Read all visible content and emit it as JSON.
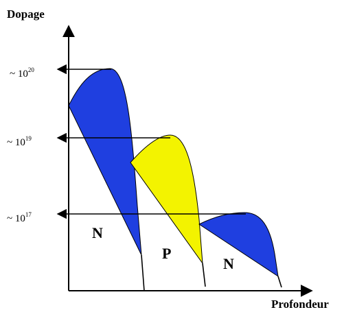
{
  "axes": {
    "y_label": "Dopage",
    "x_label": "Profondeur"
  },
  "levels": [
    {
      "prefix": "~ 10",
      "exponent": "20"
    },
    {
      "prefix": "~ 10",
      "exponent": "19"
    },
    {
      "prefix": "~ 10",
      "exponent": "17"
    }
  ],
  "regions": [
    {
      "label": "N",
      "color": "#1f3fe0"
    },
    {
      "label": "P",
      "color": "#f3f300"
    },
    {
      "label": "N",
      "color": "#1f3fe0"
    }
  ],
  "colors": {
    "axis": "#000000",
    "outline": "#000000"
  }
}
